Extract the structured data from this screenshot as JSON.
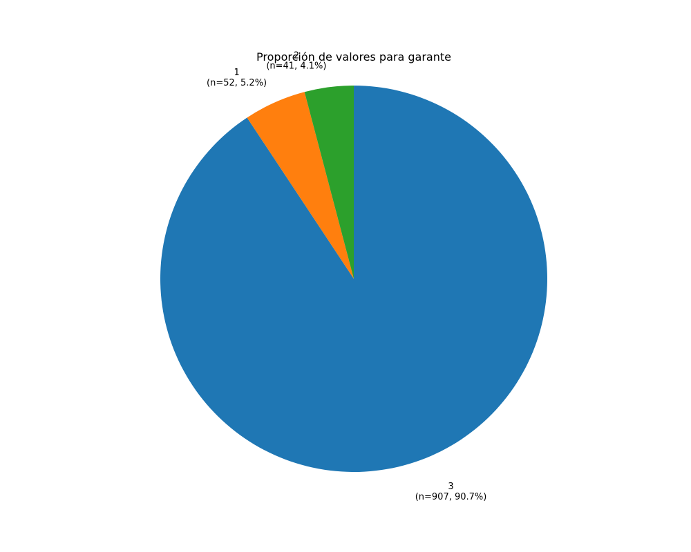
{
  "chart_data": {
    "type": "pie",
    "title": "Proporción de valores para garante",
    "slices": [
      {
        "category": "3",
        "count": 907,
        "percent": 90.7,
        "label_line1": "3",
        "label_line2": "(n=907, 90.7%)",
        "color": "#1f77b4"
      },
      {
        "category": "1",
        "count": 52,
        "percent": 5.2,
        "label_line1": "1",
        "label_line2": "(n=52, 5.2%)",
        "color": "#ff7f0e"
      },
      {
        "category": "2",
        "count": 41,
        "percent": 4.1,
        "label_line1": "2",
        "label_line2": "(n=41, 4.1%)",
        "color": "#2ca02c"
      }
    ],
    "start_angle_deg": 90,
    "direction": "clockwise",
    "legend": "none",
    "grid": false
  }
}
